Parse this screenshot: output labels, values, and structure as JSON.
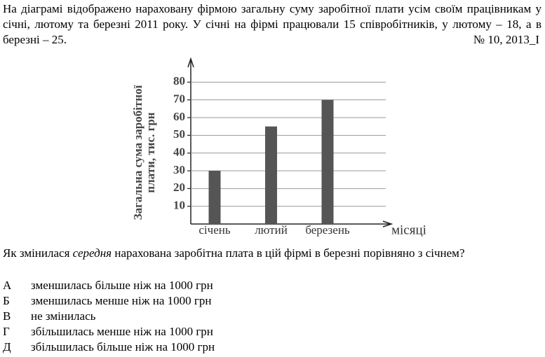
{
  "problem": {
    "text": "На діаграмі відображено нараховану фірмою загальну суму заробітної плати усім своїм працівникам у січні, лютому та березні 2011 року. У січні на фірмі працювали 15 співробітників, у лютому – 18, а в березні – 25.",
    "source": "№ 10, 2013_I"
  },
  "chart_data": {
    "type": "bar",
    "y_label": [
      "Загальна сума заробітної",
      "плати, тис. грн"
    ],
    "x_label": "місяці",
    "categories": [
      "січень",
      "лютий",
      "березень"
    ],
    "values": [
      30,
      55,
      70
    ],
    "color": "#555555",
    "ylim": [
      0,
      90
    ],
    "yticks": [
      10,
      20,
      30,
      40,
      50,
      60,
      70,
      80
    ],
    "grid": true
  },
  "question": {
    "parts": [
      "Як змінилася ",
      "середня",
      " нарахована заробітна плата в цій фірмі в березні порівняно з січнем?"
    ]
  },
  "options": [
    {
      "letter": "А",
      "text": "зменшилась більше ніж на 1000 грн"
    },
    {
      "letter": "Б",
      "text": "зменшилась менше ніж на 1000 грн"
    },
    {
      "letter": "В",
      "text": "не змінилась"
    },
    {
      "letter": "Г",
      "text": "збільшилась менше ніж на 1000 грн"
    },
    {
      "letter": "Д",
      "text": "збільшилась більше ніж на 1000 грн"
    }
  ]
}
